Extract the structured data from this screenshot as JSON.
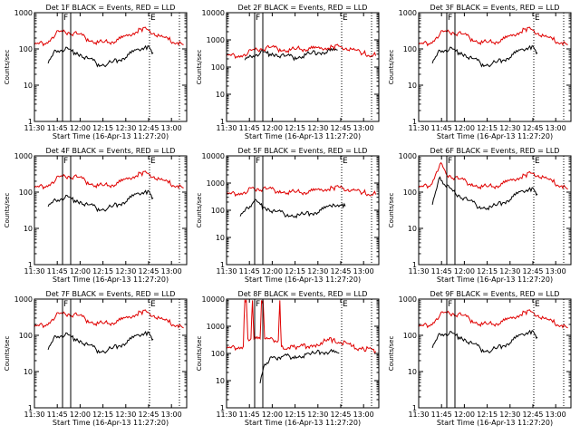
{
  "figure": {
    "chart_data": [
      {
        "type": "line",
        "title": "Det 1F BLACK = Events, RED = LLD",
        "xlabel": "Start Time (16-Apr-13 11:27:20)",
        "ylabel": "Counts/sec",
        "scale": "log",
        "ylim": [
          1,
          1000
        ],
        "xlim": [
          "11:30",
          "13:10"
        ],
        "x_ticks": [
          "11:30",
          "11:45",
          "12:00",
          "12:15",
          "12:30",
          "12:45",
          "13:00"
        ],
        "y_ticks": [
          "1",
          "10",
          "100",
          "1000"
        ],
        "region_markers": [
          "F",
          "E"
        ],
        "series": [
          {
            "name": "Events",
            "color": "#000000",
            "x": [
              "11:39",
              "11:44",
              "11:50",
              "11:58",
              "12:05",
              "12:12",
              "12:18",
              "12:25",
              "12:32",
              "12:38",
              "12:43",
              "12:46",
              "12:48"
            ],
            "values": [
              40,
              90,
              95,
              80,
              55,
              38,
              38,
              48,
              70,
              100,
              120,
              100,
              80
            ]
          },
          {
            "name": "LLD",
            "color": "#e00000",
            "x": [
              "11:30",
              "11:38",
              "11:44",
              "11:50",
              "11:58",
              "12:05",
              "12:12",
              "12:18",
              "12:25",
              "12:32",
              "12:40",
              "12:45",
              "12:52",
              "12:58",
              "13:04",
              "13:08"
            ],
            "values": [
              130,
              150,
              260,
              300,
              260,
              190,
              150,
              150,
              180,
              250,
              360,
              330,
              230,
              180,
              150,
              130
            ]
          }
        ]
      },
      {
        "type": "line",
        "title": "Det 2F BLACK = Events, RED = LLD",
        "xlabel": "Start Time (16-Apr-13 11:27:20)",
        "ylabel": "Counts/sec",
        "scale": "log",
        "ylim": [
          1,
          10000
        ],
        "xlim": [
          "11:30",
          "13:10"
        ],
        "x_ticks": [
          "11:30",
          "11:45",
          "12:00",
          "12:15",
          "12:30",
          "12:45",
          "13:00"
        ],
        "y_ticks": [
          "1",
          "10",
          "100",
          "1000",
          "10000"
        ],
        "region_markers": [
          "F",
          "E"
        ],
        "series": [
          {
            "name": "Events",
            "color": "#000000",
            "x": [
              "11:42",
              "11:46",
              "11:52",
              "12:00",
              "12:08",
              "12:15",
              "12:22",
              "12:30",
              "12:38",
              "12:43"
            ],
            "values": [
              180,
              250,
              320,
              320,
              250,
              230,
              280,
              340,
              400,
              420
            ]
          },
          {
            "name": "LLD",
            "color": "#e00000",
            "x": [
              "11:30",
              "11:38",
              "11:44",
              "11:50",
              "11:58",
              "12:05",
              "12:12",
              "12:18",
              "12:25",
              "12:32",
              "12:40",
              "12:45",
              "12:52",
              "13:00",
              "13:08"
            ],
            "values": [
              260,
              260,
              320,
              450,
              520,
              460,
              420,
              460,
              480,
              520,
              560,
              560,
              460,
              320,
              260
            ]
          }
        ]
      },
      {
        "type": "line",
        "title": "Det 3F BLACK = Events, RED = LLD",
        "xlabel": "Start Time (16-Apr-13 11:27:20)",
        "ylabel": "Counts/sec",
        "scale": "log",
        "ylim": [
          1,
          1000
        ],
        "xlim": [
          "11:30",
          "13:10"
        ],
        "x_ticks": [
          "11:30",
          "11:45",
          "12:00",
          "12:15",
          "12:30",
          "12:45",
          "13:00"
        ],
        "y_ticks": [
          "1",
          "10",
          "100",
          "1000"
        ],
        "region_markers": [
          "F",
          "E"
        ],
        "series": [
          {
            "name": "Events",
            "color": "#000000",
            "x": [
              "11:39",
              "11:44",
              "11:50",
              "11:58",
              "12:05",
              "12:12",
              "12:18",
              "12:25",
              "12:32",
              "12:38",
              "12:43",
              "12:46",
              "12:48"
            ],
            "values": [
              40,
              90,
              95,
              80,
              55,
              38,
              38,
              48,
              70,
              100,
              120,
              100,
              80
            ]
          },
          {
            "name": "LLD",
            "color": "#e00000",
            "x": [
              "11:30",
              "11:38",
              "11:44",
              "11:50",
              "11:58",
              "12:05",
              "12:12",
              "12:18",
              "12:25",
              "12:32",
              "12:40",
              "12:45",
              "12:52",
              "12:58",
              "13:04",
              "13:08"
            ],
            "values": [
              130,
              150,
              260,
              300,
              260,
              190,
              150,
              150,
              180,
              250,
              360,
              330,
              230,
              180,
              150,
              130
            ]
          }
        ]
      },
      {
        "type": "line",
        "title": "Det 4F BLACK = Events, RED = LLD",
        "xlabel": "Start Time (16-Apr-13 11:27:20)",
        "ylabel": "Counts/sec",
        "scale": "log",
        "ylim": [
          1,
          1000
        ],
        "xlim": [
          "11:30",
          "13:10"
        ],
        "x_ticks": [
          "11:30",
          "11:45",
          "12:00",
          "12:15",
          "12:30",
          "12:45",
          "13:00"
        ],
        "y_ticks": [
          "1",
          "10",
          "100",
          "1000"
        ],
        "region_markers": [
          "F",
          "E"
        ],
        "series": [
          {
            "name": "Events",
            "color": "#000000",
            "x": [
              "11:39",
              "11:44",
              "11:50",
              "11:58",
              "12:05",
              "12:12",
              "12:18",
              "12:25",
              "12:32",
              "12:38",
              "12:43",
              "12:46",
              "12:48"
            ],
            "values": [
              40,
              60,
              70,
              60,
              45,
              35,
              35,
              45,
              65,
              95,
              110,
              90,
              70
            ]
          },
          {
            "name": "LLD",
            "color": "#e00000",
            "x": [
              "11:30",
              "11:38",
              "11:44",
              "11:50",
              "11:58",
              "12:05",
              "12:12",
              "12:18",
              "12:25",
              "12:32",
              "12:40",
              "12:45",
              "12:52",
              "12:58",
              "13:04",
              "13:08"
            ],
            "values": [
              130,
              150,
              220,
              280,
              260,
              190,
              150,
              150,
              180,
              250,
              340,
              320,
              230,
              180,
              150,
              130
            ]
          }
        ]
      },
      {
        "type": "line",
        "title": "Det 5F BLACK = Events, RED = LLD",
        "xlabel": "Start Time (16-Apr-13 11:27:20)",
        "ylabel": "Counts/sec",
        "scale": "log",
        "ylim": [
          1,
          10000
        ],
        "xlim": [
          "11:30",
          "13:10"
        ],
        "x_ticks": [
          "11:30",
          "11:45",
          "12:00",
          "12:15",
          "12:30",
          "12:45",
          "13:00"
        ],
        "y_ticks": [
          "1",
          "10",
          "100",
          "1000",
          "10000"
        ],
        "region_markers": [
          "F",
          "E"
        ],
        "series": [
          {
            "name": "Events",
            "color": "#000000",
            "x": [
              "11:39",
              "11:44",
              "11:48",
              "11:55",
              "12:02",
              "12:10",
              "12:18",
              "12:25",
              "12:32",
              "12:40",
              "12:46",
              "12:48"
            ],
            "values": [
              60,
              120,
              210,
              130,
              90,
              70,
              65,
              75,
              100,
              170,
              170,
              140
            ]
          },
          {
            "name": "LLD",
            "color": "#e00000",
            "x": [
              "11:30",
              "11:38",
              "11:44",
              "11:48",
              "11:56",
              "12:05",
              "12:12",
              "12:18",
              "12:25",
              "12:32",
              "12:40",
              "12:46",
              "12:52",
              "13:00",
              "13:08"
            ],
            "values": [
              380,
              420,
              500,
              640,
              600,
              520,
              460,
              450,
              500,
              600,
              680,
              660,
              560,
              450,
              380
            ]
          }
        ]
      },
      {
        "type": "line",
        "title": "Det 6F BLACK = Events, RED = LLD",
        "xlabel": "Start Time (16-Apr-13 11:27:20)",
        "ylabel": "Counts/sec",
        "scale": "log",
        "ylim": [
          1,
          1000
        ],
        "xlim": [
          "11:30",
          "13:10"
        ],
        "x_ticks": [
          "11:30",
          "11:45",
          "12:00",
          "12:15",
          "12:30",
          "12:45",
          "13:00"
        ],
        "y_ticks": [
          "1",
          "10",
          "100",
          "1000"
        ],
        "region_markers": [
          "F",
          "E"
        ],
        "series": [
          {
            "name": "Events",
            "color": "#000000",
            "x": [
              "11:39",
              "11:44",
              "11:48",
              "11:54",
              "12:02",
              "12:10",
              "12:18",
              "12:25",
              "12:32",
              "12:38",
              "12:43",
              "12:46",
              "12:48"
            ],
            "values": [
              45,
              260,
              140,
              95,
              60,
              40,
              38,
              50,
              75,
              110,
              130,
              110,
              90
            ]
          },
          {
            "name": "LLD",
            "color": "#e00000",
            "x": [
              "11:30",
              "11:38",
              "11:44",
              "11:48",
              "11:56",
              "12:05",
              "12:12",
              "12:18",
              "12:25",
              "12:32",
              "12:40",
              "12:45",
              "12:52",
              "12:58",
              "13:04",
              "13:08"
            ],
            "values": [
              130,
              160,
              600,
              320,
              230,
              170,
              140,
              140,
              170,
              230,
              300,
              330,
              260,
              190,
              150,
              120
            ]
          }
        ]
      },
      {
        "type": "line",
        "title": "Det 7F BLACK = Events, RED = LLD",
        "xlabel": "Start Time (16-Apr-13 11:27:20)",
        "ylabel": "Counts/sec",
        "scale": "log",
        "ylim": [
          1,
          1000
        ],
        "xlim": [
          "11:30",
          "13:10"
        ],
        "x_ticks": [
          "11:30",
          "11:45",
          "12:00",
          "12:15",
          "12:30",
          "12:45",
          "13:00"
        ],
        "y_ticks": [
          "1",
          "10",
          "100",
          "1000"
        ],
        "region_markers": [
          "F",
          "E"
        ],
        "series": [
          {
            "name": "Events",
            "color": "#000000",
            "x": [
              "11:39",
              "11:44",
              "11:50",
              "11:58",
              "12:05",
              "12:12",
              "12:18",
              "12:25",
              "12:32",
              "12:38",
              "12:43",
              "12:46",
              "12:48"
            ],
            "values": [
              40,
              95,
              100,
              80,
              55,
              38,
              38,
              50,
              72,
              105,
              125,
              100,
              80
            ]
          },
          {
            "name": "LLD",
            "color": "#e00000",
            "x": [
              "11:30",
              "11:38",
              "11:44",
              "11:50",
              "11:58",
              "12:05",
              "12:12",
              "12:18",
              "12:25",
              "12:32",
              "12:40",
              "12:45",
              "12:52",
              "12:58",
              "13:04",
              "13:08"
            ],
            "values": [
              170,
              200,
              340,
              400,
              360,
              260,
              210,
              210,
              250,
              330,
              450,
              420,
              300,
              230,
              190,
              160
            ]
          }
        ]
      },
      {
        "type": "line",
        "title": "Det 8F BLACK = Events, RED = LLD",
        "xlabel": "Start Time (16-Apr-13 11:27:20)",
        "ylabel": "Counts/sec",
        "scale": "log",
        "ylim": [
          1,
          10000
        ],
        "xlim": [
          "11:30",
          "13:10"
        ],
        "x_ticks": [
          "11:30",
          "11:45",
          "12:00",
          "12:15",
          "12:30",
          "12:45",
          "13:00"
        ],
        "y_ticks": [
          "1",
          "10",
          "100",
          "1000",
          "10000"
        ],
        "region_markers": [
          "F",
          "E"
        ],
        "series": [
          {
            "name": "Events",
            "color": "#000000",
            "x": [
              "11:52",
              "11:55",
              "11:58",
              "12:02",
              "12:06",
              "12:15",
              "12:25",
              "12:32",
              "12:38",
              "12:44"
            ],
            "values": [
              8,
              40,
              55,
              70,
              75,
              80,
              90,
              110,
              120,
              100
            ]
          },
          {
            "name": "LLD",
            "color": "#e00000",
            "x": [
              "11:30",
              "11:38",
              "11:41",
              "11:42",
              "11:43",
              "11:44",
              "11:46",
              "11:47",
              "11:48",
              "11:52",
              "11:53",
              "11:54",
              "11:55",
              "12:04",
              "12:05",
              "12:06",
              "12:15",
              "12:25",
              "12:32",
              "12:40",
              "12:45",
              "12:52",
              "13:00",
              "13:08"
            ],
            "values": [
              150,
              170,
              180,
              9000,
              9000,
              350,
              350,
              9000,
              350,
              350,
              9000,
              9000,
              350,
              300,
              9000,
              180,
              170,
              190,
              250,
              330,
              260,
              180,
              150,
              120
            ]
          }
        ]
      },
      {
        "type": "line",
        "title": "Det 9F BLACK = Events, RED = LLD",
        "xlabel": "Start Time (16-Apr-13 11:27:20)",
        "ylabel": "Counts/sec",
        "scale": "log",
        "ylim": [
          1,
          1000
        ],
        "xlim": [
          "11:30",
          "13:10"
        ],
        "x_ticks": [
          "11:30",
          "11:45",
          "12:00",
          "12:15",
          "12:30",
          "12:45",
          "13:00"
        ],
        "y_ticks": [
          "1",
          "10",
          "100",
          "1000"
        ],
        "region_markers": [
          "F",
          "E"
        ],
        "series": [
          {
            "name": "Events",
            "color": "#000000",
            "x": [
              "11:39",
              "11:44",
              "11:50",
              "11:58",
              "12:05",
              "12:12",
              "12:18",
              "12:25",
              "12:32",
              "12:38",
              "12:43",
              "12:46",
              "12:48"
            ],
            "values": [
              45,
              110,
              110,
              90,
              60,
              40,
              38,
              50,
              75,
              110,
              135,
              110,
              90
            ]
          },
          {
            "name": "LLD",
            "color": "#e00000",
            "x": [
              "11:30",
              "11:38",
              "11:44",
              "11:50",
              "11:58",
              "12:05",
              "12:12",
              "12:18",
              "12:25",
              "12:32",
              "12:40",
              "12:45",
              "12:52",
              "12:58",
              "13:04",
              "13:08"
            ],
            "values": [
              170,
              200,
              360,
              420,
              360,
              260,
              200,
              200,
              240,
              320,
              450,
              430,
              300,
              230,
              190,
              160
            ]
          }
        ]
      }
    ]
  }
}
